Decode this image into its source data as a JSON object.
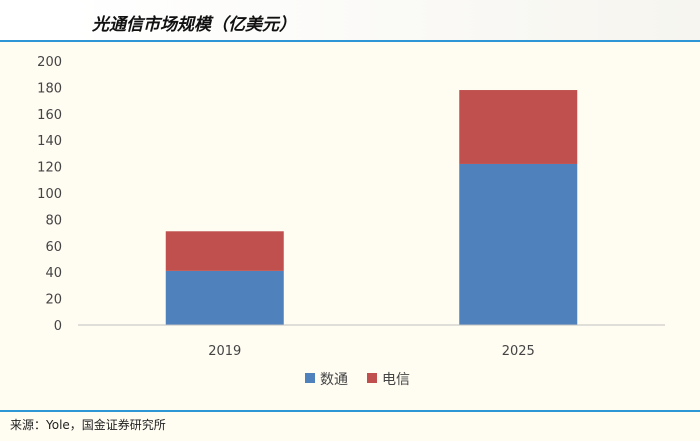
{
  "title": "光通信市场规模（亿美元）",
  "source": "来源：Yole，国金证券研究所",
  "colors": {
    "accent_rule": "#2f96d6",
    "series_datacom": "#4f81bd",
    "series_telecom": "#c0504d"
  },
  "chart_data": {
    "type": "bar",
    "stacked": true,
    "categories": [
      "2019",
      "2025"
    ],
    "series": [
      {
        "name": "数通",
        "values": [
          41,
          122
        ],
        "color": "#4f81bd"
      },
      {
        "name": "电信",
        "values": [
          30,
          56
        ],
        "color": "#c0504d"
      }
    ],
    "ylim": [
      0,
      200
    ],
    "yticks": [
      0,
      20,
      40,
      60,
      80,
      100,
      120,
      140,
      160,
      180,
      200
    ],
    "grid": false,
    "legend": "bottom"
  }
}
